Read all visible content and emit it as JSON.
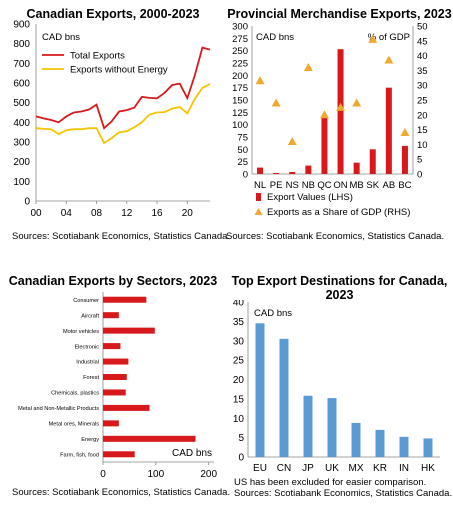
{
  "charts": [
    {
      "type": "line",
      "title": "Canadian Exports, 2000-2023",
      "unit_label": "CAD bns",
      "x": [
        2000,
        2001,
        2002,
        2003,
        2004,
        2005,
        2006,
        2007,
        2008,
        2009,
        2010,
        2011,
        2012,
        2013,
        2014,
        2015,
        2016,
        2017,
        2018,
        2019,
        2020,
        2021,
        2022,
        2023
      ],
      "x_tick_labels": [
        "00",
        "04",
        "08",
        "12",
        "16",
        "20"
      ],
      "x_tick_values": [
        2000,
        2004,
        2008,
        2012,
        2016,
        2020
      ],
      "y_ticks": [
        0,
        100,
        200,
        300,
        400,
        500,
        600,
        700,
        800,
        900
      ],
      "ylim": [
        0,
        900
      ],
      "series": [
        {
          "name": "Total Exports",
          "color": "#d7191c",
          "values": [
            430,
            420,
            412,
            400,
            430,
            450,
            455,
            465,
            490,
            370,
            405,
            455,
            462,
            475,
            530,
            524,
            522,
            550,
            590,
            597,
            523,
            640,
            780,
            770
          ]
        },
        {
          "name": "Exports without Energy",
          "color": "#f5c400",
          "values": [
            370,
            367,
            365,
            340,
            360,
            365,
            365,
            370,
            370,
            295,
            320,
            350,
            355,
            375,
            400,
            440,
            450,
            452,
            470,
            478,
            445,
            520,
            575,
            595
          ]
        }
      ],
      "legend_position": "top-left",
      "source": "Sources: Scotiabank Economics, Statistics Canada."
    },
    {
      "type": "bar",
      "title": "Provincial Merchandise Exports, 2023",
      "left_unit_label": "CAD bns",
      "right_unit_label": "% of GDP",
      "categories": [
        "NL",
        "PE",
        "NS",
        "NB",
        "QC",
        "ON",
        "MB",
        "SK",
        "AB",
        "BC"
      ],
      "ylim_left": [
        0,
        300
      ],
      "y_ticks_left": [
        0,
        25,
        50,
        75,
        100,
        125,
        150,
        175,
        200,
        225,
        250,
        275,
        300
      ],
      "ylim_right": [
        0,
        50
      ],
      "y_ticks_right": [
        0,
        5,
        10,
        15,
        20,
        25,
        30,
        35,
        40,
        45,
        50
      ],
      "series": [
        {
          "name": "Export Values (LHS)",
          "color": "#d7191c",
          "values": [
            13,
            2,
            4,
            17,
            115,
            253,
            23,
            50,
            175,
            57
          ]
        },
        {
          "name": "Exports as a Share of GDP (RHS)",
          "color": "#f0a830",
          "values": [
            31.5,
            24,
            11,
            36,
            20,
            22.5,
            24,
            45.5,
            38.5,
            14
          ]
        }
      ],
      "source": "Sources: Scotiabank Economics, Statistics Canada."
    },
    {
      "type": "bar",
      "orientation": "horizontal",
      "title": "Canadian Exports by Sectors, 2023",
      "unit_label": "CAD bns",
      "color": "#d7191c",
      "categories": [
        "Consumer",
        "Aircraft",
        "Motor vehicles",
        "Electronic",
        "Industrial",
        "Forest",
        "Chemicals, plastics",
        "Metal and Non-Metallic Products",
        "Metal ores, Minerals",
        "Energy",
        "Farm, fish, food"
      ],
      "values": [
        82,
        30,
        98,
        33,
        48,
        45,
        43,
        88,
        30,
        175,
        60
      ],
      "x_ticks": [
        0,
        100,
        200
      ],
      "xlim": [
        0,
        210
      ],
      "source": "Sources: Scotiabank Economics, Statistics Canada."
    },
    {
      "type": "bar",
      "title": "Top Export Destinations for Canada, 2023",
      "title_lines": [
        "Top Export Destinations for Canada,",
        "2023"
      ],
      "unit_label": "CAD bns",
      "color": "#5b9bd5",
      "categories": [
        "EU",
        "CN",
        "JP",
        "UK",
        "MX",
        "KR",
        "IN",
        "HK"
      ],
      "values": [
        34.5,
        30.5,
        15.8,
        15.2,
        8.8,
        7.0,
        5.2,
        4.8
      ],
      "y_ticks": [
        0,
        5,
        10,
        15,
        20,
        25,
        30,
        35,
        40
      ],
      "ylim": [
        0,
        40
      ],
      "note": "US has been excluded for easier comparison.",
      "source": "Sources: Scotiabank Economics, Statistics Canada."
    }
  ]
}
